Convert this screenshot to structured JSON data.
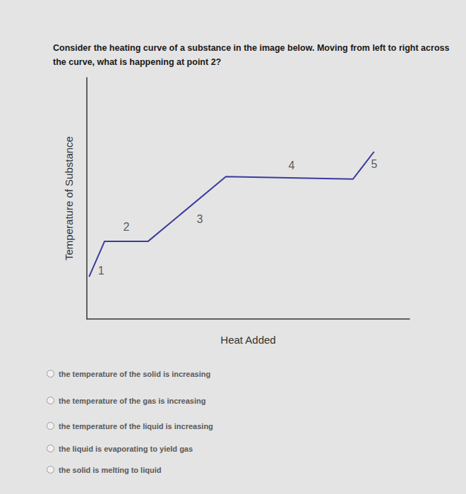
{
  "chart_data": {
    "type": "line",
    "title": "Consider the heating curve of a substance in the image below. Moving from left to right across the curve, what is happening at point 2?",
    "x_label": "Heat Added",
    "y_label": "Temperature of Substance",
    "x": [
      0.7,
      5.5,
      19,
      43.1,
      82.5,
      89
    ],
    "values": [
      17.5,
      32.2,
      32.2,
      59,
      58,
      69.3
    ],
    "segment_labels": [
      "1",
      "2",
      "3",
      "4",
      "5"
    ],
    "color": "#3b3b9e",
    "xlim": [
      0,
      100
    ],
    "ylim": [
      0,
      100
    ],
    "tick_labels": false,
    "grid": false
  },
  "choices": [
    "the temperature of the solid is increasing",
    "the temperature of the gas is increasing",
    "the temperature of the liquid is increasing",
    "the liquid is evaporating to yield gas",
    "the solid is melting to liquid"
  ]
}
